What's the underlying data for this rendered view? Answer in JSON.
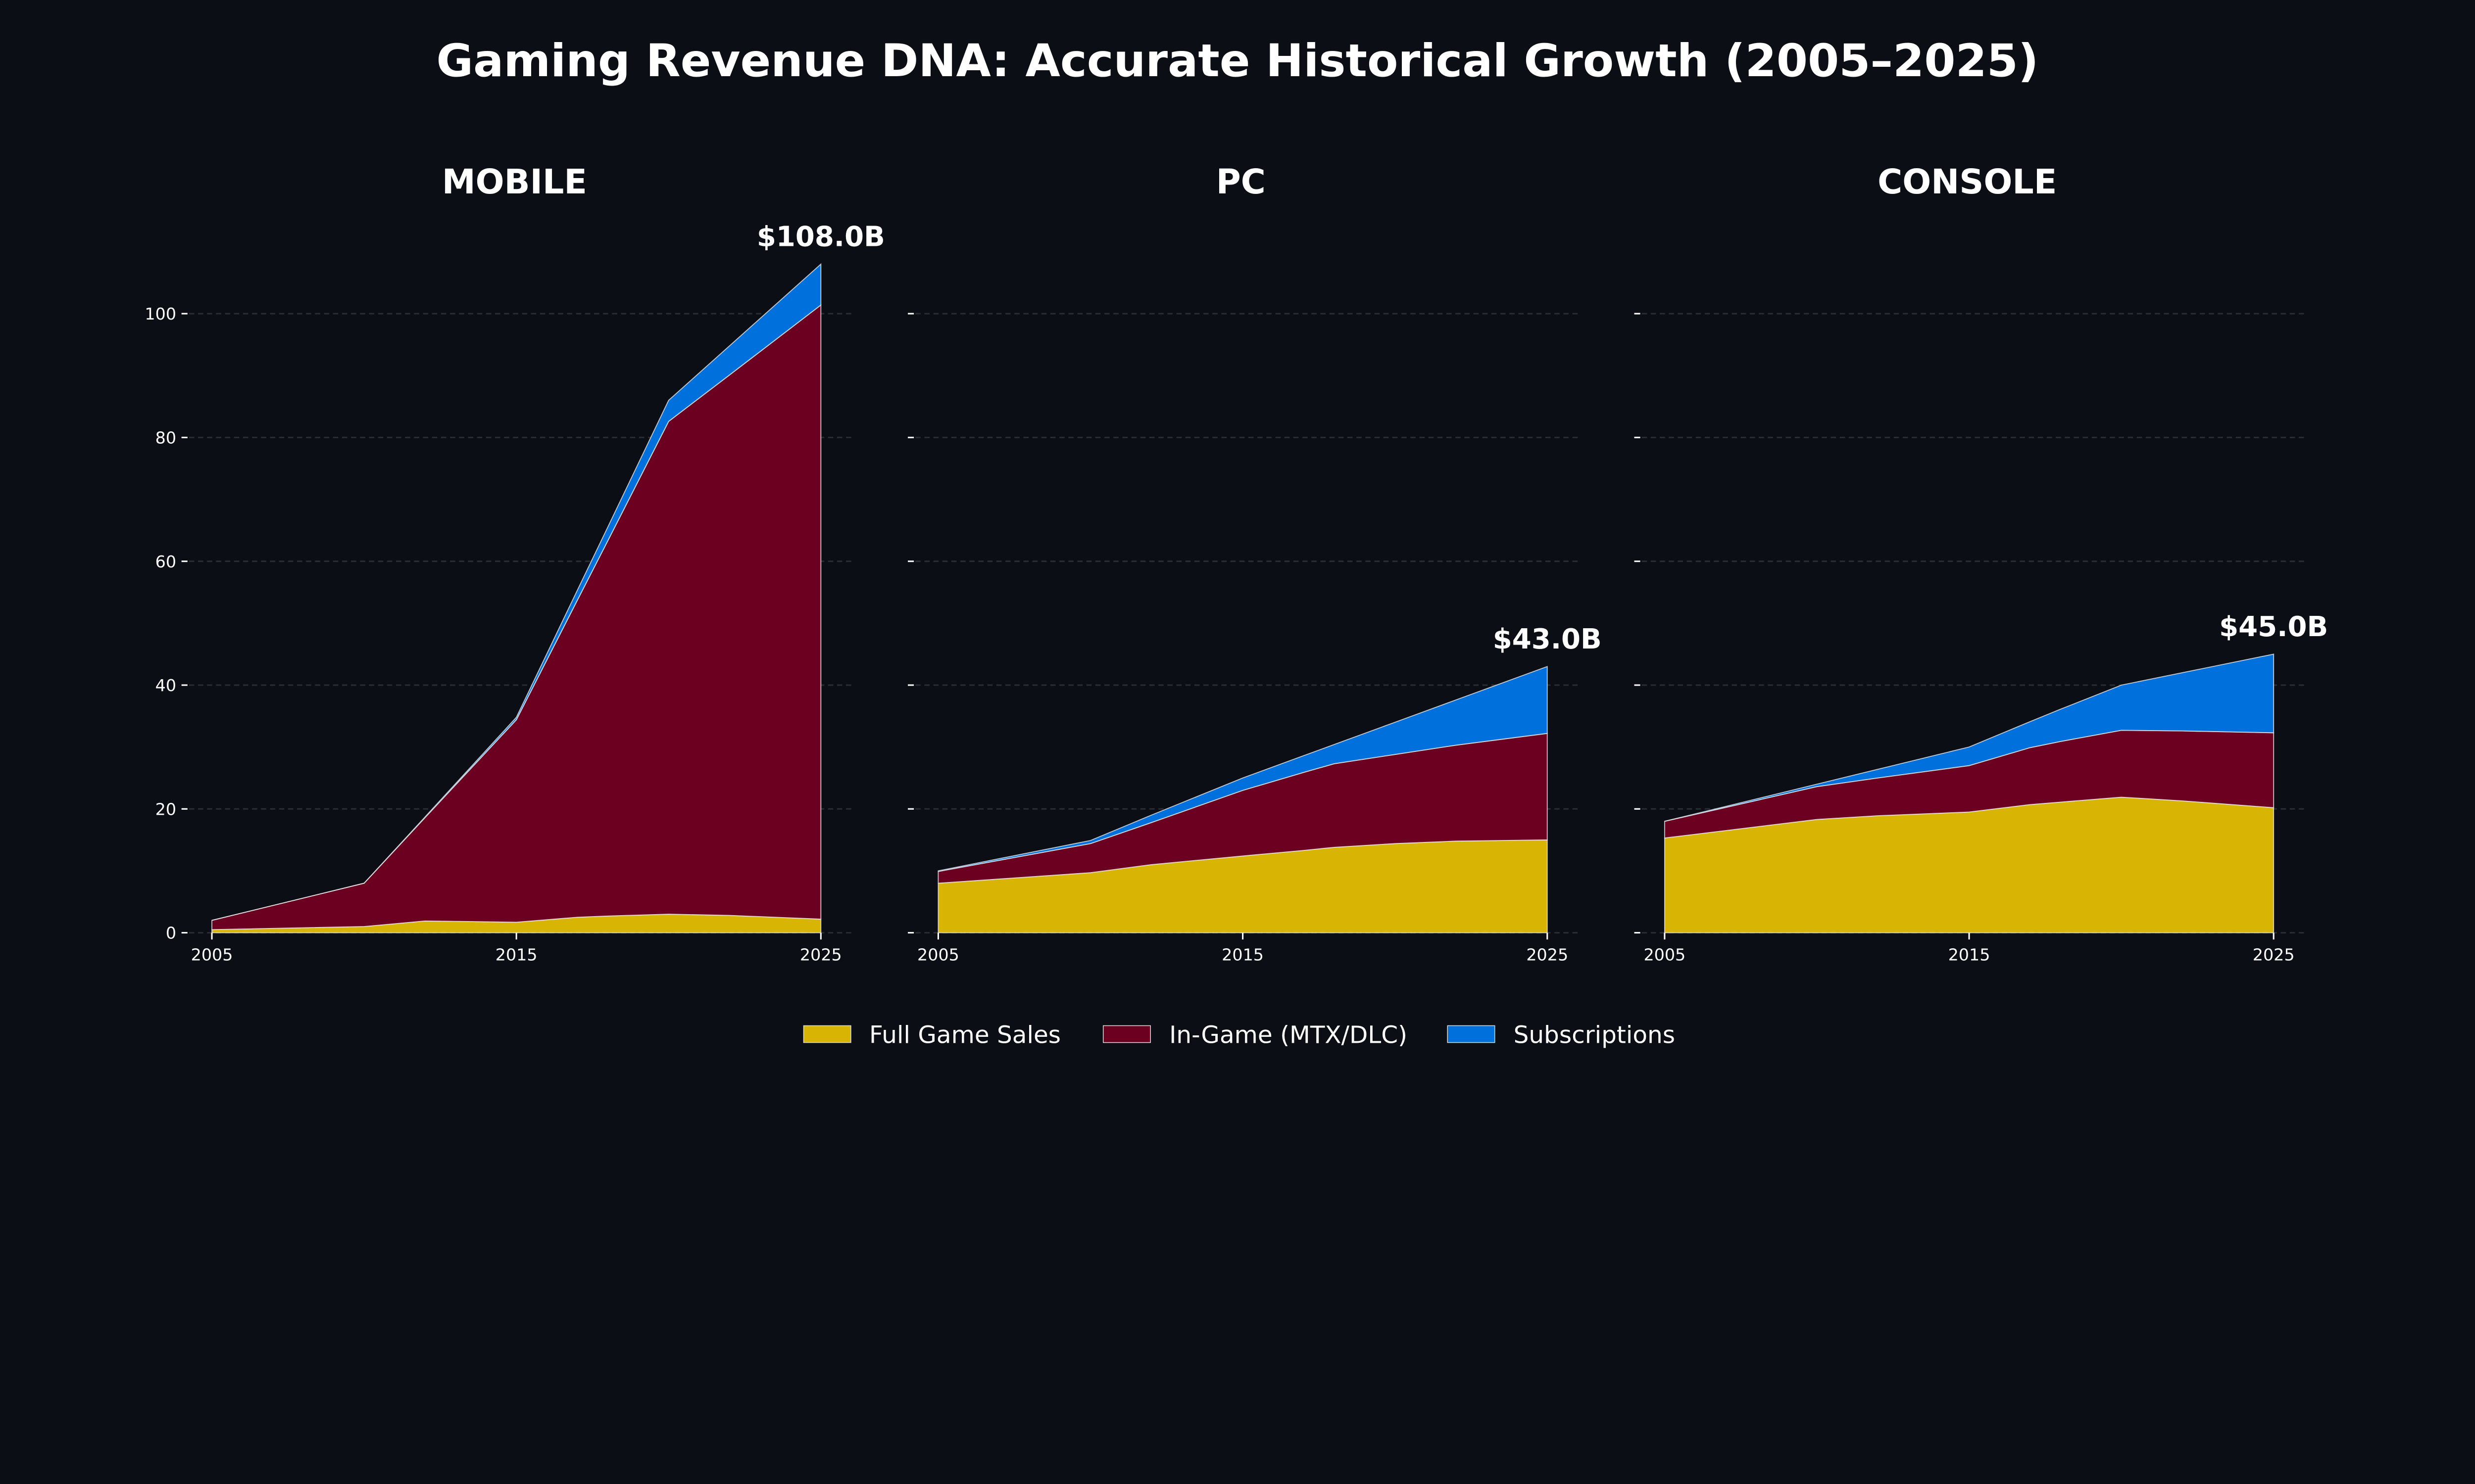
{
  "title": "Gaming Revenue DNA: Accurate Historical Growth (2005–2025)",
  "colors": {
    "background": "#0b0e14",
    "full_game": "#d8b505",
    "in_game": "#6b0020",
    "subscriptions": "#0070dd",
    "grid": "#2a2d33"
  },
  "legend": {
    "placement": "bottom-center",
    "items": [
      {
        "label": "Full Game Sales",
        "color": "#d8b505"
      },
      {
        "label": "In-Game (MTX/DLC)",
        "color": "#6b0020"
      },
      {
        "label": "Subscriptions",
        "color": "#0070dd"
      }
    ]
  },
  "chart_data": [
    {
      "type": "area",
      "stacked": true,
      "title": "MOBILE",
      "total_label": "$108.0B",
      "x": [
        2005,
        2010,
        2012,
        2015,
        2017,
        2018,
        2020,
        2022,
        2025
      ],
      "xticks": [
        "2005",
        "2015",
        "2025"
      ],
      "yticks": [
        "0",
        "20",
        "40",
        "60",
        "80",
        "100"
      ],
      "ylim": [
        0,
        113
      ],
      "grid": true,
      "series": [
        {
          "name": "Full Game Sales",
          "values": [
            0.5,
            1.0,
            1.9,
            1.7,
            2.5,
            2.7,
            3.0,
            2.8,
            2.2
          ]
        },
        {
          "name": "In-Game (MTX/DLC)",
          "values": [
            1.5,
            7.0,
            16.7,
            32.7,
            51.2,
            60.6,
            79.6,
            87.3,
            99.2
          ]
        },
        {
          "name": "Subscriptions",
          "values": [
            0.0,
            0.0,
            0.1,
            0.4,
            1.6,
            2.2,
            3.4,
            4.7,
            6.6
          ]
        }
      ]
    },
    {
      "type": "area",
      "stacked": true,
      "title": "PC",
      "total_label": "$43.0B",
      "x": [
        2005,
        2010,
        2012,
        2015,
        2017,
        2018,
        2020,
        2022,
        2025
      ],
      "xticks": [
        "2005",
        "2015",
        "2025"
      ],
      "ylim": [
        0,
        113
      ],
      "grid": true,
      "series": [
        {
          "name": "Full Game Sales",
          "values": [
            8.0,
            9.7,
            11.0,
            12.4,
            13.3,
            13.8,
            14.4,
            14.8,
            15.0
          ]
        },
        {
          "name": "In-Game (MTX/DLC)",
          "values": [
            1.9,
            4.7,
            6.8,
            10.6,
            12.6,
            13.5,
            14.4,
            15.5,
            17.2
          ]
        },
        {
          "name": "Subscriptions",
          "values": [
            0.1,
            0.5,
            1.2,
            2.0,
            2.7,
            3.1,
            5.2,
            7.3,
            10.8
          ]
        }
      ]
    },
    {
      "type": "area",
      "stacked": true,
      "title": "CONSOLE",
      "total_label": "$45.0B",
      "x": [
        2005,
        2010,
        2012,
        2015,
        2017,
        2018,
        2020,
        2022,
        2025
      ],
      "xticks": [
        "2005",
        "2015",
        "2025"
      ],
      "ylim": [
        0,
        113
      ],
      "grid": true,
      "series": [
        {
          "name": "Full Game Sales",
          "values": [
            15.3,
            18.3,
            18.9,
            19.5,
            20.7,
            21.1,
            21.9,
            21.3,
            20.2
          ]
        },
        {
          "name": "In-Game (MTX/DLC)",
          "values": [
            2.7,
            5.3,
            6.1,
            7.5,
            9.2,
            9.8,
            10.8,
            11.3,
            12.1
          ]
        },
        {
          "name": "Subscriptions",
          "values": [
            0.0,
            0.4,
            1.4,
            3.0,
            4.2,
            5.2,
            7.3,
            9.4,
            12.7
          ]
        }
      ]
    }
  ]
}
